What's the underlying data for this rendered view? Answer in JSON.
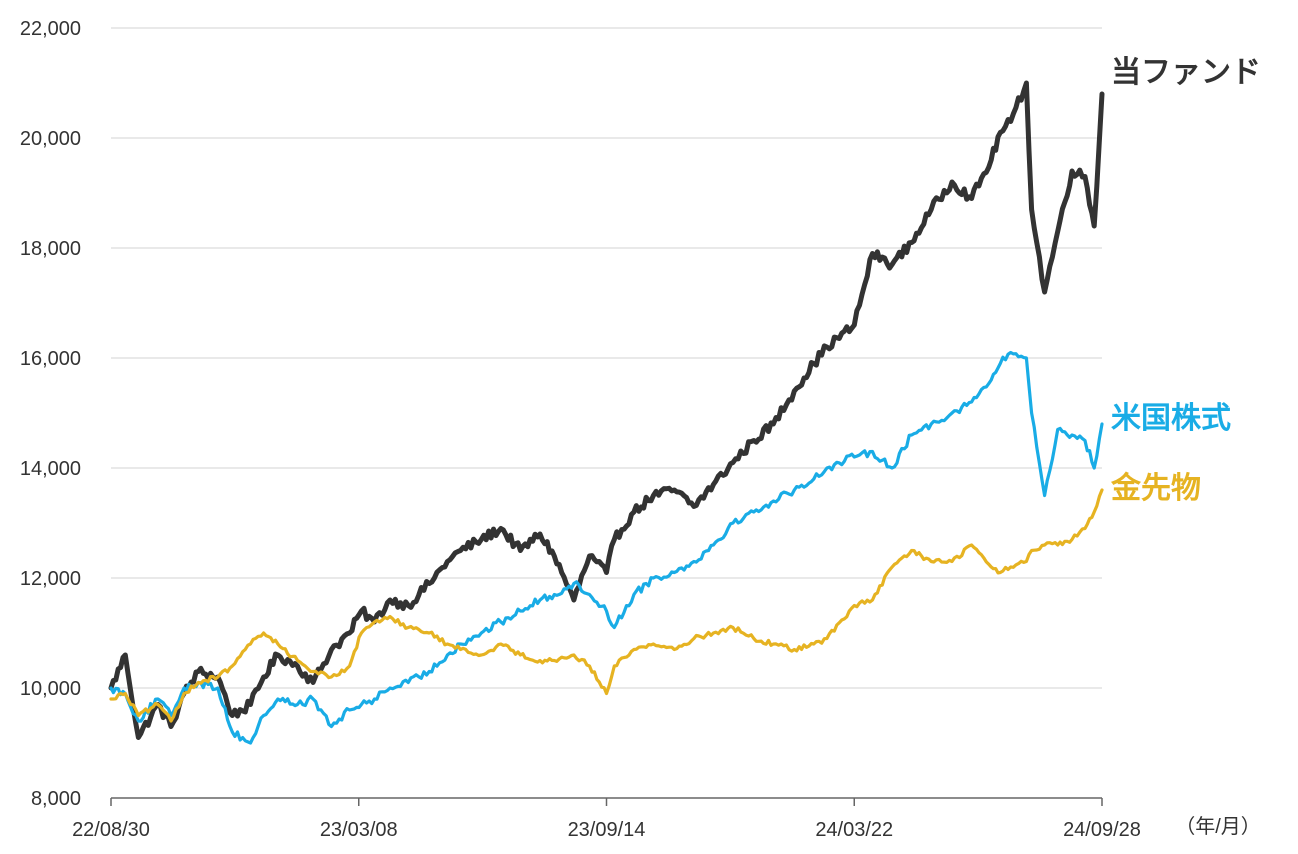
{
  "chart_data": {
    "type": "line",
    "title": "",
    "xlabel": "",
    "ylabel": "",
    "x_unit_label": "（年/月）",
    "x_ticks": [
      "22/08/30",
      "23/03/08",
      "23/09/14",
      "24/03/22",
      "24/09/28"
    ],
    "x_range": [
      "22/08/30",
      "24/09/28"
    ],
    "y_ticks": [
      "8,000",
      "10,000",
      "12,000",
      "14,000",
      "16,000",
      "18,000",
      "20,000",
      "22,000"
    ],
    "ylim": [
      8000,
      22000
    ],
    "grid": "horizontal",
    "legend": "inline-right",
    "series": [
      {
        "name": "当ファンド",
        "color": "#333333",
        "x": [
          "22/08/30",
          "22/09/10",
          "22/09/20",
          "22/10/05",
          "22/10/15",
          "22/10/25",
          "22/11/05",
          "22/11/20",
          "22/12/01",
          "22/12/15",
          "22/12/25",
          "23/01/05",
          "23/01/20",
          "23/02/01",
          "23/02/15",
          "23/03/01",
          "23/03/10",
          "23/03/20",
          "23/04/01",
          "23/04/15",
          "23/05/01",
          "23/05/15",
          "23/05/25",
          "23/06/10",
          "23/06/25",
          "23/07/10",
          "23/07/25",
          "23/08/05",
          "23/08/20",
          "23/09/01",
          "23/09/14",
          "23/09/20",
          "23/10/05",
          "23/10/20",
          "23/11/05",
          "23/11/20",
          "23/12/05",
          "23/12/20",
          "24/01/05",
          "24/01/20",
          "24/02/05",
          "24/02/20",
          "24/03/01",
          "24/03/22",
          "24/04/05",
          "24/04/20",
          "24/05/05",
          "24/05/20",
          "24/06/05",
          "24/06/20",
          "24/07/05",
          "24/07/12",
          "24/07/20",
          "24/08/01",
          "24/08/05",
          "24/08/15",
          "24/08/25",
          "24/09/05",
          "24/09/15",
          "24/09/22",
          "24/09/28"
        ],
        "values": [
          10000,
          10600,
          9100,
          9700,
          9300,
          9900,
          10300,
          10200,
          9500,
          9700,
          10200,
          10600,
          10400,
          10100,
          10700,
          11000,
          11400,
          11200,
          11600,
          11500,
          11900,
          12300,
          12500,
          12700,
          12900,
          12500,
          12800,
          12400,
          11600,
          12400,
          12100,
          12700,
          13200,
          13500,
          13600,
          13300,
          13700,
          14100,
          14500,
          14800,
          15400,
          15900,
          16200,
          16600,
          17900,
          17700,
          18100,
          18700,
          19200,
          18900,
          19600,
          20100,
          20300,
          21000,
          18700,
          17200,
          18300,
          19400,
          19300,
          18400,
          20800
        ]
      },
      {
        "name": "米国株式",
        "color": "#19ace6",
        "x": [
          "22/08/30",
          "22/09/10",
          "22/09/20",
          "22/10/05",
          "22/10/15",
          "22/10/25",
          "22/11/05",
          "22/11/20",
          "22/12/01",
          "22/12/15",
          "22/12/25",
          "23/01/05",
          "23/01/20",
          "23/02/01",
          "23/02/15",
          "23/03/01",
          "23/03/10",
          "23/03/20",
          "23/04/01",
          "23/04/15",
          "23/05/01",
          "23/05/15",
          "23/05/25",
          "23/06/10",
          "23/06/25",
          "23/07/10",
          "23/07/25",
          "23/08/05",
          "23/08/20",
          "23/09/01",
          "23/09/14",
          "23/09/20",
          "23/10/05",
          "23/10/20",
          "23/11/05",
          "23/11/20",
          "23/12/05",
          "23/12/20",
          "24/01/05",
          "24/01/20",
          "24/02/05",
          "24/02/20",
          "24/03/01",
          "24/03/22",
          "24/04/05",
          "24/04/20",
          "24/05/05",
          "24/05/20",
          "24/06/05",
          "24/06/20",
          "24/07/05",
          "24/07/12",
          "24/07/20",
          "24/08/01",
          "24/08/05",
          "24/08/15",
          "24/08/25",
          "24/09/05",
          "24/09/15",
          "24/09/22",
          "24/09/28"
        ],
        "values": [
          10000,
          9900,
          9400,
          9800,
          9500,
          10000,
          10100,
          10000,
          9200,
          9000,
          9500,
          9800,
          9700,
          9800,
          9300,
          9600,
          9700,
          9800,
          10000,
          10100,
          10300,
          10600,
          10800,
          11000,
          11200,
          11400,
          11600,
          11700,
          11900,
          11700,
          11400,
          11100,
          11700,
          12000,
          12100,
          12300,
          12600,
          13000,
          13200,
          13400,
          13600,
          13800,
          14000,
          14200,
          14300,
          14000,
          14600,
          14800,
          15000,
          15200,
          15600,
          15900,
          16100,
          16000,
          15000,
          13500,
          14700,
          14600,
          14500,
          14000,
          14800
        ]
      },
      {
        "name": "金先物",
        "color": "#e6b322",
        "x": [
          "22/08/30",
          "22/09/10",
          "22/09/20",
          "22/10/05",
          "22/10/15",
          "22/10/25",
          "22/11/05",
          "22/11/20",
          "22/12/01",
          "22/12/15",
          "22/12/25",
          "23/01/05",
          "23/01/20",
          "23/02/01",
          "23/02/15",
          "23/03/01",
          "23/03/10",
          "23/03/20",
          "23/04/01",
          "23/04/15",
          "23/05/01",
          "23/05/15",
          "23/05/25",
          "23/06/10",
          "23/06/25",
          "23/07/10",
          "23/07/25",
          "23/08/05",
          "23/08/20",
          "23/09/01",
          "23/09/14",
          "23/09/20",
          "23/10/05",
          "23/10/20",
          "23/11/05",
          "23/11/20",
          "23/12/05",
          "23/12/20",
          "24/01/05",
          "24/01/20",
          "24/02/05",
          "24/02/20",
          "24/03/01",
          "24/03/22",
          "24/04/05",
          "24/04/20",
          "24/05/05",
          "24/05/20",
          "24/06/05",
          "24/06/20",
          "24/07/05",
          "24/07/12",
          "24/07/20",
          "24/08/01",
          "24/08/05",
          "24/08/15",
          "24/08/25",
          "24/09/05",
          "24/09/15",
          "24/09/22",
          "24/09/28"
        ],
        "values": [
          9800,
          9900,
          9500,
          9700,
          9400,
          9900,
          10100,
          10200,
          10400,
          10800,
          11000,
          10800,
          10500,
          10300,
          10200,
          10400,
          11000,
          11200,
          11300,
          11100,
          11000,
          10800,
          10700,
          10600,
          10800,
          10600,
          10500,
          10500,
          10600,
          10400,
          9900,
          10400,
          10700,
          10800,
          10700,
          10900,
          11000,
          11100,
          10900,
          10800,
          10700,
          10800,
          10900,
          11500,
          11600,
          12200,
          12500,
          12300,
          12300,
          12600,
          12200,
          12100,
          12200,
          12300,
          12500,
          12600,
          12600,
          12700,
          12900,
          13200,
          13600
        ]
      }
    ]
  }
}
